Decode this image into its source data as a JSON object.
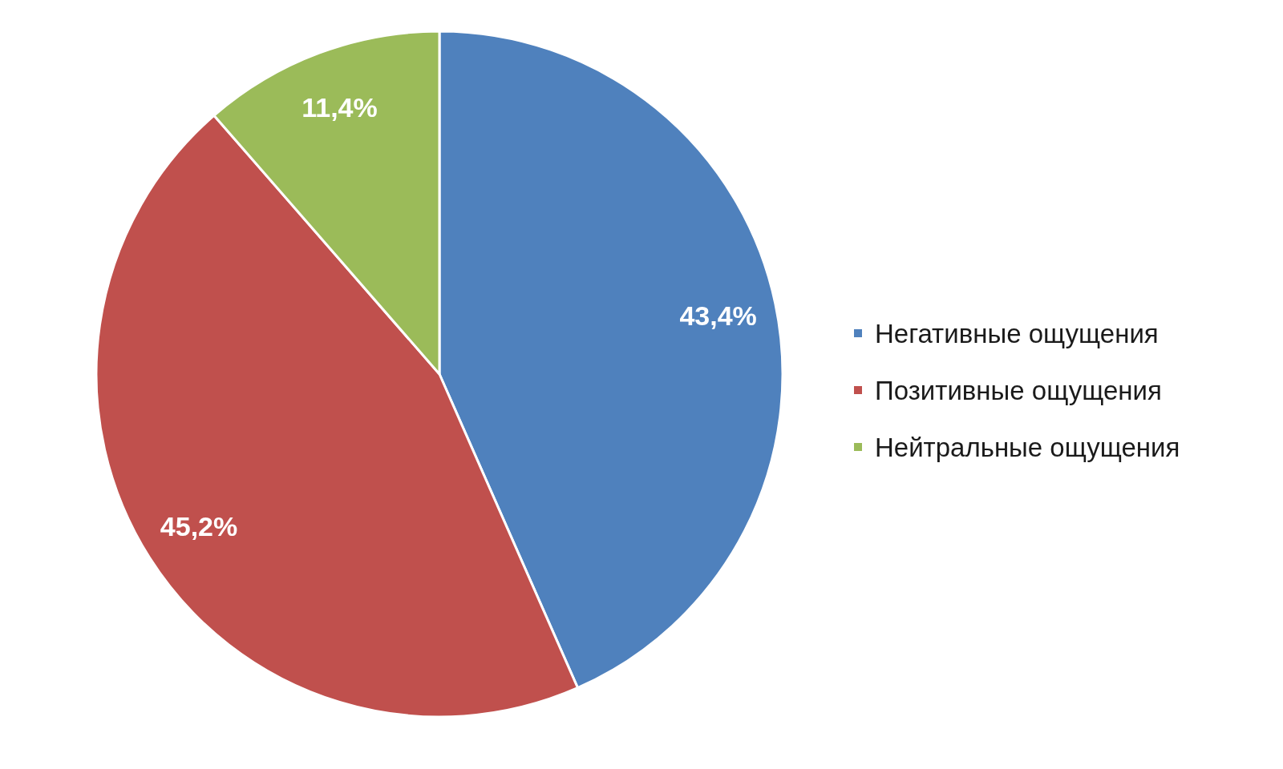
{
  "chart_data": {
    "type": "pie",
    "categories": [
      "Негативные ощущения",
      "Позитивные ощущения",
      "Нейтральные ощущения"
    ],
    "values": [
      43.4,
      45.2,
      11.4
    ],
    "colors": [
      "#4f81bd",
      "#c0504d",
      "#9bbb59"
    ],
    "value_labels": [
      "43,4%",
      "45,2%",
      "11,4%"
    ],
    "legend": "right"
  }
}
